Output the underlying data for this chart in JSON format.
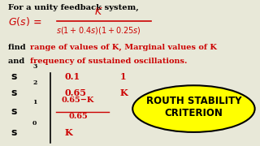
{
  "bg_color": "#e8e8d8",
  "text_color_black": "#000000",
  "text_color_red": "#cc0000",
  "intro_line": "For a unity feedback system,",
  "routh_label": "ROUTH STABILITY\nCRITERION",
  "rows": [
    {
      "power": "3",
      "col1": "0.1",
      "col2": "1"
    },
    {
      "power": "2",
      "col1": "0.65",
      "col2": "K"
    },
    {
      "power": "1",
      "col1_num": "0.65−K",
      "col1_den": "0.65",
      "col2": ""
    },
    {
      "power": "0",
      "col1": "K",
      "col2": ""
    }
  ],
  "figsize": [
    3.2,
    1.8
  ],
  "dpi": 100
}
